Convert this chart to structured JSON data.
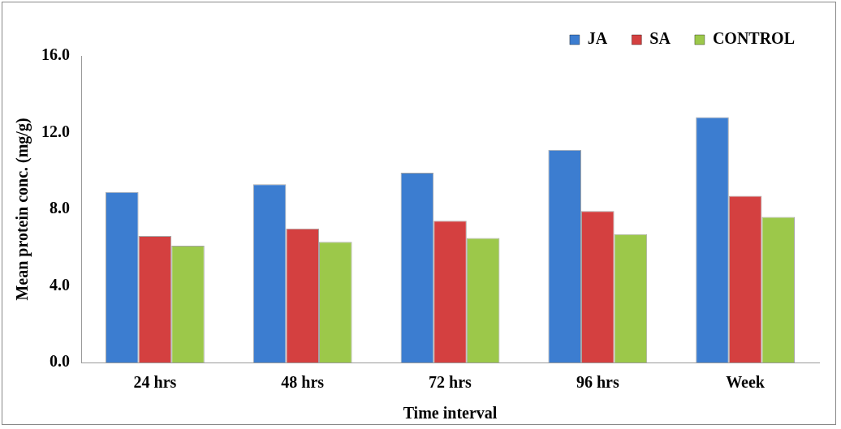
{
  "chart_data": {
    "type": "bar",
    "xlabel": "Time interval",
    "ylabel": "Mean protein conc. (mg/g)",
    "categories": [
      "24 hrs",
      "48 hrs",
      "72 hrs",
      "96 hrs",
      "Week"
    ],
    "series": [
      {
        "name": "JA",
        "color": "#3c7dd0",
        "values": [
          8.9,
          9.3,
          9.9,
          11.1,
          12.8
        ]
      },
      {
        "name": "SA",
        "color": "#d44040",
        "values": [
          6.6,
          7.0,
          7.4,
          7.9,
          8.7
        ]
      },
      {
        "name": "CONTROL",
        "color": "#9cc84a",
        "values": [
          6.1,
          6.3,
          6.5,
          6.7,
          7.6
        ]
      }
    ],
    "ylim": [
      0,
      16
    ],
    "yticks": [
      {
        "value": 0,
        "label": "0.0"
      },
      {
        "value": 4,
        "label": "4.0"
      },
      {
        "value": 8,
        "label": "8.0"
      },
      {
        "value": 12,
        "label": "12.0"
      },
      {
        "value": 16,
        "label": "16.0"
      }
    ],
    "grid": false,
    "legend": "top right"
  }
}
